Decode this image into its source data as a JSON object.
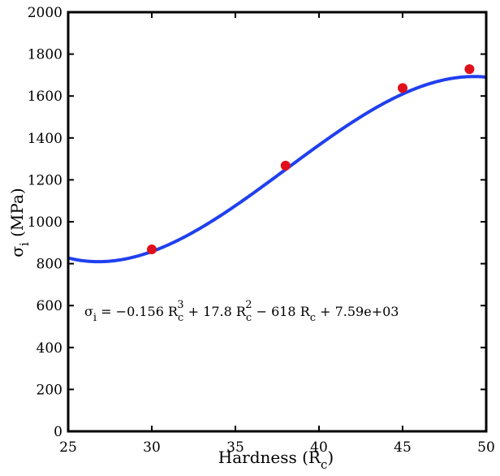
{
  "chart_data": {
    "type": "scatter",
    "xlabel": {
      "main": "Hardness (R",
      "sub": "c",
      "tail": ")"
    },
    "ylabel": {
      "main": "σ",
      "sub": "i",
      "tail": " (MPa)"
    },
    "xlim": [
      25,
      50
    ],
    "ylim": [
      0,
      2000
    ],
    "xticks": [
      "25",
      "30",
      "35",
      "40",
      "45",
      "50"
    ],
    "yticks": [
      "0",
      "200",
      "400",
      "600",
      "800",
      "1000",
      "1200",
      "1400",
      "1600",
      "1800",
      "2000"
    ],
    "grid": false,
    "series": [
      {
        "kind": "points",
        "color": "#e0101a",
        "x": [
          30,
          38,
          45,
          49
        ],
        "y": [
          868,
          1268,
          1638,
          1728
        ]
      },
      {
        "kind": "fit",
        "color": "#2040ee",
        "coefficients": {
          "a3": -0.156,
          "a2": 17.8,
          "a1": -618,
          "a0": 7590
        },
        "x_range": [
          25,
          50
        ]
      }
    ],
    "annotation": {
      "sigma": "σ",
      "sigma_sub": "i",
      "eq": " = −0.156 R",
      "t1_sub": "c",
      "t1_sup": "3",
      "t2": " + 17.8 R",
      "t2_sub": "c",
      "t2_sup": "2",
      "t3": " − 618 R",
      "t3_sub": "c",
      "t4": " + 7.59e+03"
    }
  }
}
